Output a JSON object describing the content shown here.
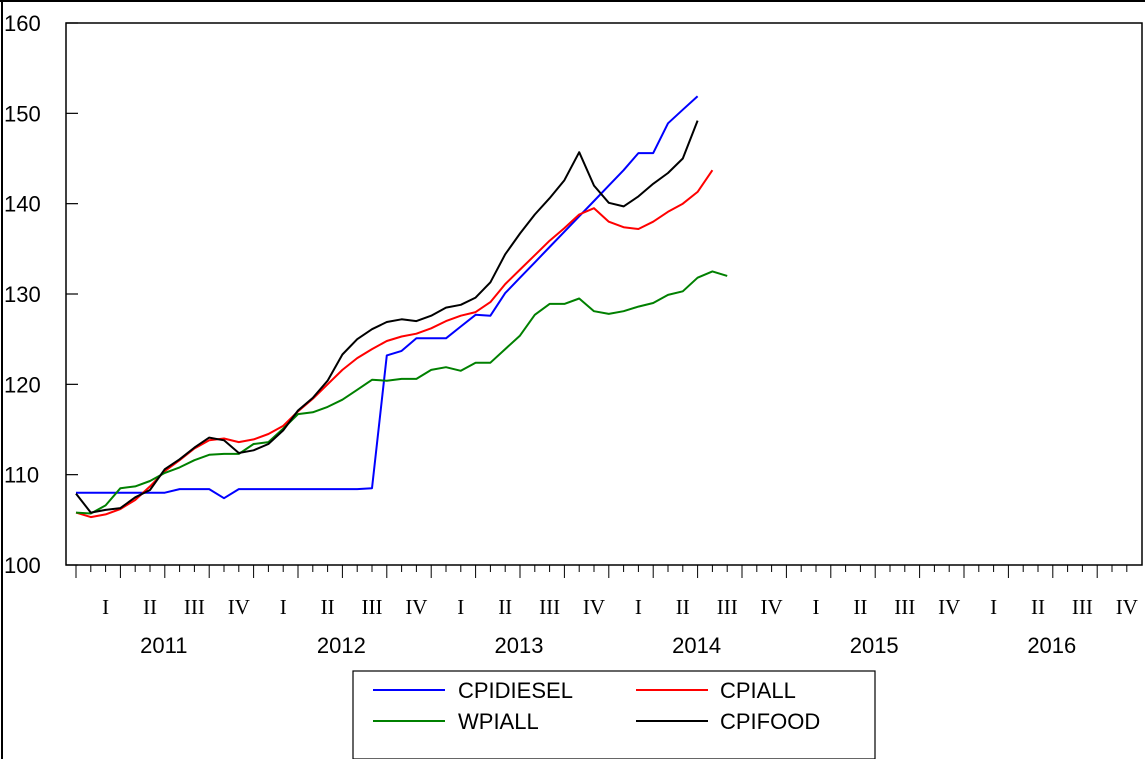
{
  "chart_data": {
    "type": "line",
    "title": "",
    "xlabel": "",
    "ylabel": "",
    "ylim": [
      100,
      160
    ],
    "yticks": [
      100,
      110,
      120,
      130,
      140,
      150,
      160
    ],
    "x_start": "2011-01",
    "x_end": "2016-12",
    "quarter_labels": [
      "I",
      "II",
      "III",
      "IV",
      "I",
      "II",
      "III",
      "IV",
      "I",
      "II",
      "III",
      "IV",
      "I",
      "II",
      "III",
      "IV",
      "I",
      "II",
      "III",
      "IV",
      "I",
      "II",
      "III",
      "IV"
    ],
    "years": [
      "2011",
      "2012",
      "2013",
      "2014",
      "2015",
      "2016"
    ],
    "legend_position": "bottom-center",
    "grid": false,
    "series": [
      {
        "name": "CPIDIESEL",
        "color": "#0000ff",
        "values": [
          108.0,
          108.0,
          108.0,
          108.0,
          108.0,
          108.0,
          108.0,
          108.4,
          108.4,
          108.4,
          107.4,
          108.4,
          108.4,
          108.4,
          108.4,
          108.4,
          108.4,
          108.4,
          108.4,
          108.4,
          108.5,
          123.2,
          123.7,
          125.1,
          125.1,
          125.1,
          126.4,
          127.7,
          127.6,
          130.1,
          131.8,
          133.5,
          135.2,
          136.9,
          138.6,
          140.3,
          142.0,
          143.7,
          145.6,
          145.6,
          148.9,
          150.4,
          151.9
        ]
      },
      {
        "name": "CPIALL",
        "color": "#ff0000",
        "values": [
          105.8,
          105.3,
          105.6,
          106.2,
          107.2,
          108.7,
          110.4,
          111.6,
          112.9,
          113.8,
          114.0,
          113.6,
          113.9,
          114.5,
          115.4,
          117.0,
          118.4,
          120.0,
          121.6,
          122.9,
          123.9,
          124.8,
          125.3,
          125.6,
          126.2,
          127.0,
          127.6,
          128.0,
          129.1,
          131.1,
          132.7,
          134.3,
          135.9,
          137.3,
          138.8,
          139.5,
          138.0,
          137.4,
          137.2,
          138.0,
          139.1,
          140.0,
          141.3,
          143.7
        ]
      },
      {
        "name": "WPIALL",
        "color": "#008000",
        "values": [
          105.8,
          105.7,
          106.6,
          108.5,
          108.7,
          109.3,
          110.2,
          110.8,
          111.6,
          112.2,
          112.3,
          112.3,
          113.4,
          113.6,
          115.1,
          116.7,
          116.9,
          117.5,
          118.3,
          119.4,
          120.5,
          120.4,
          120.6,
          120.6,
          121.6,
          121.9,
          121.5,
          122.4,
          122.4,
          123.9,
          125.4,
          127.7,
          128.9,
          128.9,
          129.5,
          128.1,
          127.8,
          128.1,
          128.6,
          129.0,
          129.9,
          130.3,
          131.8,
          132.5,
          132.0
        ]
      },
      {
        "name": "CPIFOOD",
        "color": "#000000",
        "values": [
          107.9,
          105.8,
          106.1,
          106.3,
          107.5,
          108.3,
          110.6,
          111.7,
          113.0,
          114.1,
          113.8,
          112.4,
          112.7,
          113.4,
          114.9,
          117.1,
          118.5,
          120.4,
          123.3,
          125.0,
          126.1,
          126.9,
          127.2,
          127.0,
          127.6,
          128.5,
          128.8,
          129.6,
          131.3,
          134.4,
          136.7,
          138.8,
          140.6,
          142.6,
          145.7,
          142.0,
          140.1,
          139.7,
          140.8,
          142.2,
          143.4,
          145.0,
          149.2
        ]
      }
    ]
  }
}
